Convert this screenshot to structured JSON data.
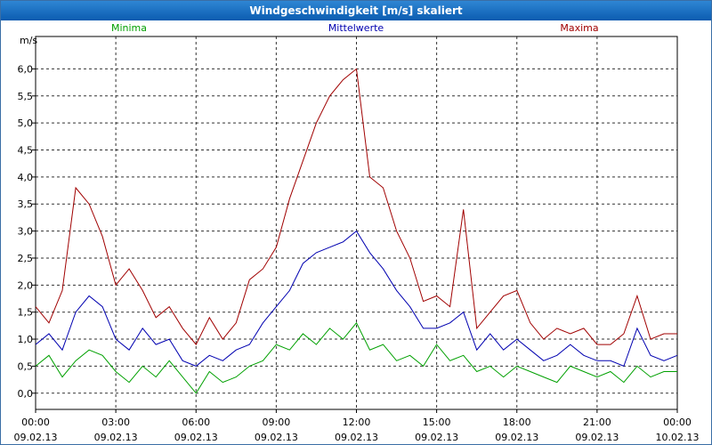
{
  "window": {
    "title": "Windgeschwindigkeit [m/s] skaliert"
  },
  "chart_data": {
    "type": "line",
    "title": "Windgeschwindigkeit [m/s] skaliert",
    "ylabel": "m/s",
    "ylim": [
      -0.3,
      6.6
    ],
    "yticks": [
      0.0,
      0.5,
      1.0,
      1.5,
      2.0,
      2.5,
      3.0,
      3.5,
      4.0,
      4.5,
      5.0,
      5.5,
      6.0
    ],
    "ytick_labels": [
      "0,0",
      "0,5",
      "1,0",
      "1,5",
      "2,0",
      "2,5",
      "3,0",
      "3,5",
      "4,0",
      "4,5",
      "5,0",
      "5,5",
      "6,0"
    ],
    "xlim": [
      0,
      24
    ],
    "xticks": [
      0,
      3,
      6,
      9,
      12,
      15,
      18,
      21,
      24
    ],
    "xtick_time": [
      "00:00",
      "03:00",
      "06:00",
      "09:00",
      "12:00",
      "15:00",
      "18:00",
      "21:00",
      "00:00"
    ],
    "xtick_date": [
      "09.02.13",
      "09.02.13",
      "09.02.13",
      "09.02.13",
      "09.02.13",
      "09.02.13",
      "09.02.13",
      "09.02.13",
      "10.02.13"
    ],
    "grid": true,
    "legend_position": "top",
    "x": [
      0.0,
      0.5,
      1.0,
      1.5,
      2.0,
      2.5,
      3.0,
      3.5,
      4.0,
      4.5,
      5.0,
      5.5,
      6.0,
      6.5,
      7.0,
      7.5,
      8.0,
      8.5,
      9.0,
      9.5,
      10.0,
      10.5,
      11.0,
      11.5,
      12.0,
      12.5,
      13.0,
      13.5,
      14.0,
      14.5,
      15.0,
      15.5,
      16.0,
      16.5,
      17.0,
      17.5,
      18.0,
      18.5,
      19.0,
      19.5,
      20.0,
      20.5,
      21.0,
      21.5,
      22.0,
      22.5,
      23.0,
      23.5,
      24.0
    ],
    "series": [
      {
        "name": "Minima",
        "color": "#00a000",
        "values": [
          0.5,
          0.7,
          0.3,
          0.6,
          0.8,
          0.7,
          0.4,
          0.2,
          0.5,
          0.3,
          0.6,
          0.3,
          0.0,
          0.4,
          0.2,
          0.3,
          0.5,
          0.6,
          0.9,
          0.8,
          1.1,
          0.9,
          1.2,
          1.0,
          1.3,
          0.8,
          0.9,
          0.6,
          0.7,
          0.5,
          0.9,
          0.6,
          0.7,
          0.4,
          0.5,
          0.3,
          0.5,
          0.4,
          0.3,
          0.2,
          0.5,
          0.4,
          0.3,
          0.4,
          0.2,
          0.5,
          0.3,
          0.4,
          0.4
        ]
      },
      {
        "name": "Mittelwerte",
        "color": "#0000b0",
        "values": [
          0.9,
          1.1,
          0.8,
          1.5,
          1.8,
          1.6,
          1.0,
          0.8,
          1.2,
          0.9,
          1.0,
          0.6,
          0.5,
          0.7,
          0.6,
          0.8,
          0.9,
          1.3,
          1.6,
          1.9,
          2.4,
          2.6,
          2.7,
          2.8,
          3.0,
          2.6,
          2.3,
          1.9,
          1.6,
          1.2,
          1.2,
          1.3,
          1.5,
          0.8,
          1.1,
          0.8,
          1.0,
          0.8,
          0.6,
          0.7,
          0.9,
          0.7,
          0.6,
          0.6,
          0.5,
          1.2,
          0.7,
          0.6,
          0.7
        ]
      },
      {
        "name": "Maxima",
        "color": "#a00000",
        "values": [
          1.6,
          1.3,
          1.9,
          3.8,
          3.5,
          2.9,
          2.0,
          2.3,
          1.9,
          1.4,
          1.6,
          1.2,
          0.9,
          1.4,
          1.0,
          1.3,
          2.1,
          2.3,
          2.7,
          3.6,
          4.3,
          5.0,
          5.5,
          5.8,
          6.0,
          4.0,
          3.8,
          3.0,
          2.5,
          1.7,
          1.8,
          1.6,
          3.4,
          1.2,
          1.5,
          1.8,
          1.9,
          1.3,
          1.0,
          1.2,
          1.1,
          1.2,
          0.9,
          0.9,
          1.1,
          1.8,
          1.0,
          1.1,
          1.1
        ]
      }
    ]
  }
}
